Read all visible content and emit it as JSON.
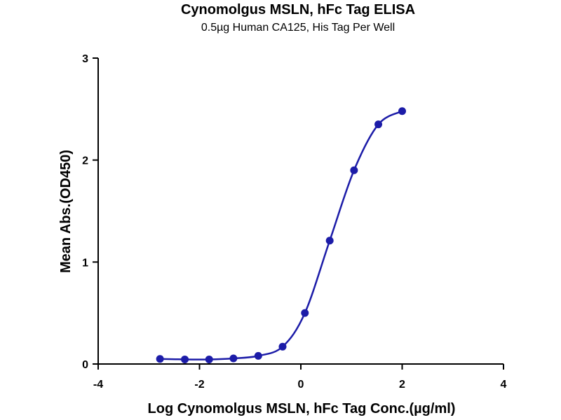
{
  "chart_data": {
    "type": "line",
    "title": "Cynomolgus MSLN, hFc Tag ELISA",
    "subtitle": "0.5µg Human CA125, His Tag Per Well",
    "xlabel": "Log Cynomolgus MSLN, hFc Tag Conc.(µg/ml)",
    "ylabel": "Mean Abs.(OD450)",
    "xlim": [
      -4,
      4
    ],
    "ylim": [
      0,
      3
    ],
    "xticks": [
      "-4",
      "-2",
      "0",
      "2",
      "4"
    ],
    "yticks": [
      "0",
      "1",
      "2",
      "3"
    ],
    "grid": false,
    "legend": "none",
    "series": [
      {
        "color": "#1c1ca8",
        "points": [
          {
            "x": -2.78,
            "y": 0.05
          },
          {
            "x": -2.29,
            "y": 0.045
          },
          {
            "x": -1.81,
            "y": 0.045
          },
          {
            "x": -1.33,
            "y": 0.055
          },
          {
            "x": -0.84,
            "y": 0.08
          },
          {
            "x": -0.36,
            "y": 0.17
          },
          {
            "x": 0.08,
            "y": 0.5
          },
          {
            "x": 0.57,
            "y": 1.21
          },
          {
            "x": 1.05,
            "y": 1.9
          },
          {
            "x": 1.53,
            "y": 2.35
          },
          {
            "x": 2.0,
            "y": 2.48
          }
        ]
      }
    ]
  }
}
